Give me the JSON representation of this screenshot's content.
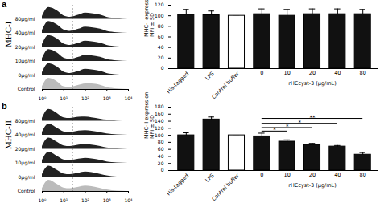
{
  "chart_data": [
    {
      "type": "area",
      "title": "a",
      "y_label": "MHC-I",
      "log": "x",
      "tick_labels": "x",
      "x": [
        1,
        2,
        5,
        10,
        20,
        50,
        100,
        200,
        500,
        1000,
        3000,
        10000
      ],
      "xlim": [
        1,
        10000
      ],
      "xticks": [
        {
          "value": 1,
          "label": "10⁰"
        },
        {
          "value": 10,
          "label": "10¹"
        },
        {
          "value": 100,
          "label": "10²"
        },
        {
          "value": 1000,
          "label": "10³"
        },
        {
          "value": 10000,
          "label": "10⁴"
        }
      ],
      "reference_line": {
        "x": 25
      },
      "series": [
        {
          "name": "80μg/ml",
          "color": "#222222",
          "values": [
            0.2,
            0.85,
            0.6,
            0.25,
            0.15,
            0.3,
            0.45,
            0.4,
            0.3,
            0.15,
            0.05,
            0
          ]
        },
        {
          "name": "40μg/ml",
          "color": "#222222",
          "values": [
            0.2,
            0.85,
            0.6,
            0.25,
            0.15,
            0.3,
            0.45,
            0.4,
            0.3,
            0.15,
            0.05,
            0
          ]
        },
        {
          "name": "20μg/ml",
          "color": "#222222",
          "values": [
            0.2,
            0.85,
            0.6,
            0.25,
            0.15,
            0.3,
            0.45,
            0.4,
            0.3,
            0.15,
            0.05,
            0
          ]
        },
        {
          "name": "10μg/ml",
          "color": "#222222",
          "values": [
            0.2,
            0.85,
            0.6,
            0.25,
            0.15,
            0.3,
            0.45,
            0.4,
            0.3,
            0.15,
            0.05,
            0
          ]
        },
        {
          "name": "0μg/ml",
          "color": "#222222",
          "values": [
            0.2,
            0.85,
            0.6,
            0.25,
            0.15,
            0.3,
            0.45,
            0.4,
            0.3,
            0.15,
            0.05,
            0
          ]
        },
        {
          "name": "Control",
          "color": "#bbbbbb",
          "values": [
            0.2,
            0.8,
            0.55,
            0.2,
            0.15,
            0.3,
            0.4,
            0.4,
            0.3,
            0.15,
            0.05,
            0
          ]
        }
      ]
    },
    {
      "type": "bar",
      "y_label": "MHC-I expression\nMFI ± SD",
      "categories": [
        "His-tagged",
        "LPS",
        "Control buffer",
        "0",
        "10",
        "20",
        "40",
        "80"
      ],
      "values": [
        102,
        101,
        100,
        103,
        100,
        103,
        103,
        103
      ],
      "errors": [
        10,
        8,
        0,
        10,
        12,
        10,
        10,
        9
      ],
      "colors": [
        "#111111",
        "#111111",
        "#ffffff",
        "#111111",
        "#111111",
        "#111111",
        "#111111",
        "#111111"
      ],
      "ylim": [
        0,
        120
      ],
      "yticks": [
        0,
        20,
        40,
        60,
        80,
        100,
        120
      ],
      "x_group": {
        "label": "rHCcyst-3 (μg/mL)",
        "from": "0",
        "to": "80"
      }
    },
    {
      "type": "area",
      "title": "b",
      "y_label": "MHC-II",
      "log": "x",
      "tick_labels": "x",
      "x": [
        1,
        2,
        5,
        10,
        20,
        50,
        100,
        200,
        500,
        1000,
        3000,
        10000
      ],
      "xlim": [
        1,
        10000
      ],
      "xticks": [
        {
          "value": 1,
          "label": "10⁰"
        },
        {
          "value": 10,
          "label": "10¹"
        },
        {
          "value": 100,
          "label": "10²"
        },
        {
          "value": 1000,
          "label": "10³"
        },
        {
          "value": 10000,
          "label": "10⁴"
        }
      ],
      "reference_line": {
        "x": 25
      },
      "series": [
        {
          "name": "80μg/ml",
          "color": "#222222",
          "values": [
            0.2,
            0.85,
            0.55,
            0.25,
            0.2,
            0.28,
            0.3,
            0.25,
            0.15,
            0.08,
            0.02,
            0
          ]
        },
        {
          "name": "40μg/ml",
          "color": "#222222",
          "values": [
            0.2,
            0.8,
            0.5,
            0.25,
            0.2,
            0.3,
            0.33,
            0.28,
            0.18,
            0.1,
            0.03,
            0
          ]
        },
        {
          "name": "20μg/ml",
          "color": "#222222",
          "values": [
            0.2,
            0.8,
            0.5,
            0.25,
            0.2,
            0.3,
            0.35,
            0.3,
            0.2,
            0.1,
            0.03,
            0
          ]
        },
        {
          "name": "10μg/ml",
          "color": "#222222",
          "values": [
            0.2,
            0.8,
            0.5,
            0.25,
            0.2,
            0.3,
            0.36,
            0.32,
            0.22,
            0.1,
            0.03,
            0
          ]
        },
        {
          "name": "0μg/ml",
          "color": "#222222",
          "values": [
            0.2,
            0.8,
            0.5,
            0.25,
            0.2,
            0.3,
            0.38,
            0.34,
            0.22,
            0.12,
            0.03,
            0
          ]
        },
        {
          "name": "Control",
          "color": "#bbbbbb",
          "values": [
            0.2,
            0.8,
            0.5,
            0.25,
            0.2,
            0.3,
            0.38,
            0.34,
            0.22,
            0.12,
            0.03,
            0
          ]
        }
      ]
    },
    {
      "type": "bar",
      "y_label": "MHC-II expression\nMFI ± SD",
      "categories": [
        "His-tagged",
        "LPS",
        "Control buffer",
        "0",
        "10",
        "20",
        "40",
        "80"
      ],
      "values": [
        100,
        145,
        100,
        97,
        82,
        73,
        68,
        45
      ],
      "errors": [
        7,
        7,
        0,
        9,
        5,
        4,
        3,
        6
      ],
      "colors": [
        "#111111",
        "#111111",
        "#ffffff",
        "#111111",
        "#111111",
        "#111111",
        "#111111",
        "#111111"
      ],
      "ylim": [
        0,
        180
      ],
      "yticks": [
        0,
        20,
        40,
        60,
        80,
        100,
        120,
        140,
        160,
        180
      ],
      "x_group": {
        "label": "rHCcyst-3 (μg/mL)",
        "from": "0",
        "to": "80"
      },
      "significance": [
        {
          "from": "0",
          "to": "10",
          "label": "*",
          "y": 112
        },
        {
          "from": "0",
          "to": "20",
          "label": "*",
          "y": 122
        },
        {
          "from": "0",
          "to": "40",
          "label": "*",
          "y": 134
        },
        {
          "from": "0",
          "to": "80",
          "label": "**",
          "y": 148
        }
      ]
    }
  ]
}
